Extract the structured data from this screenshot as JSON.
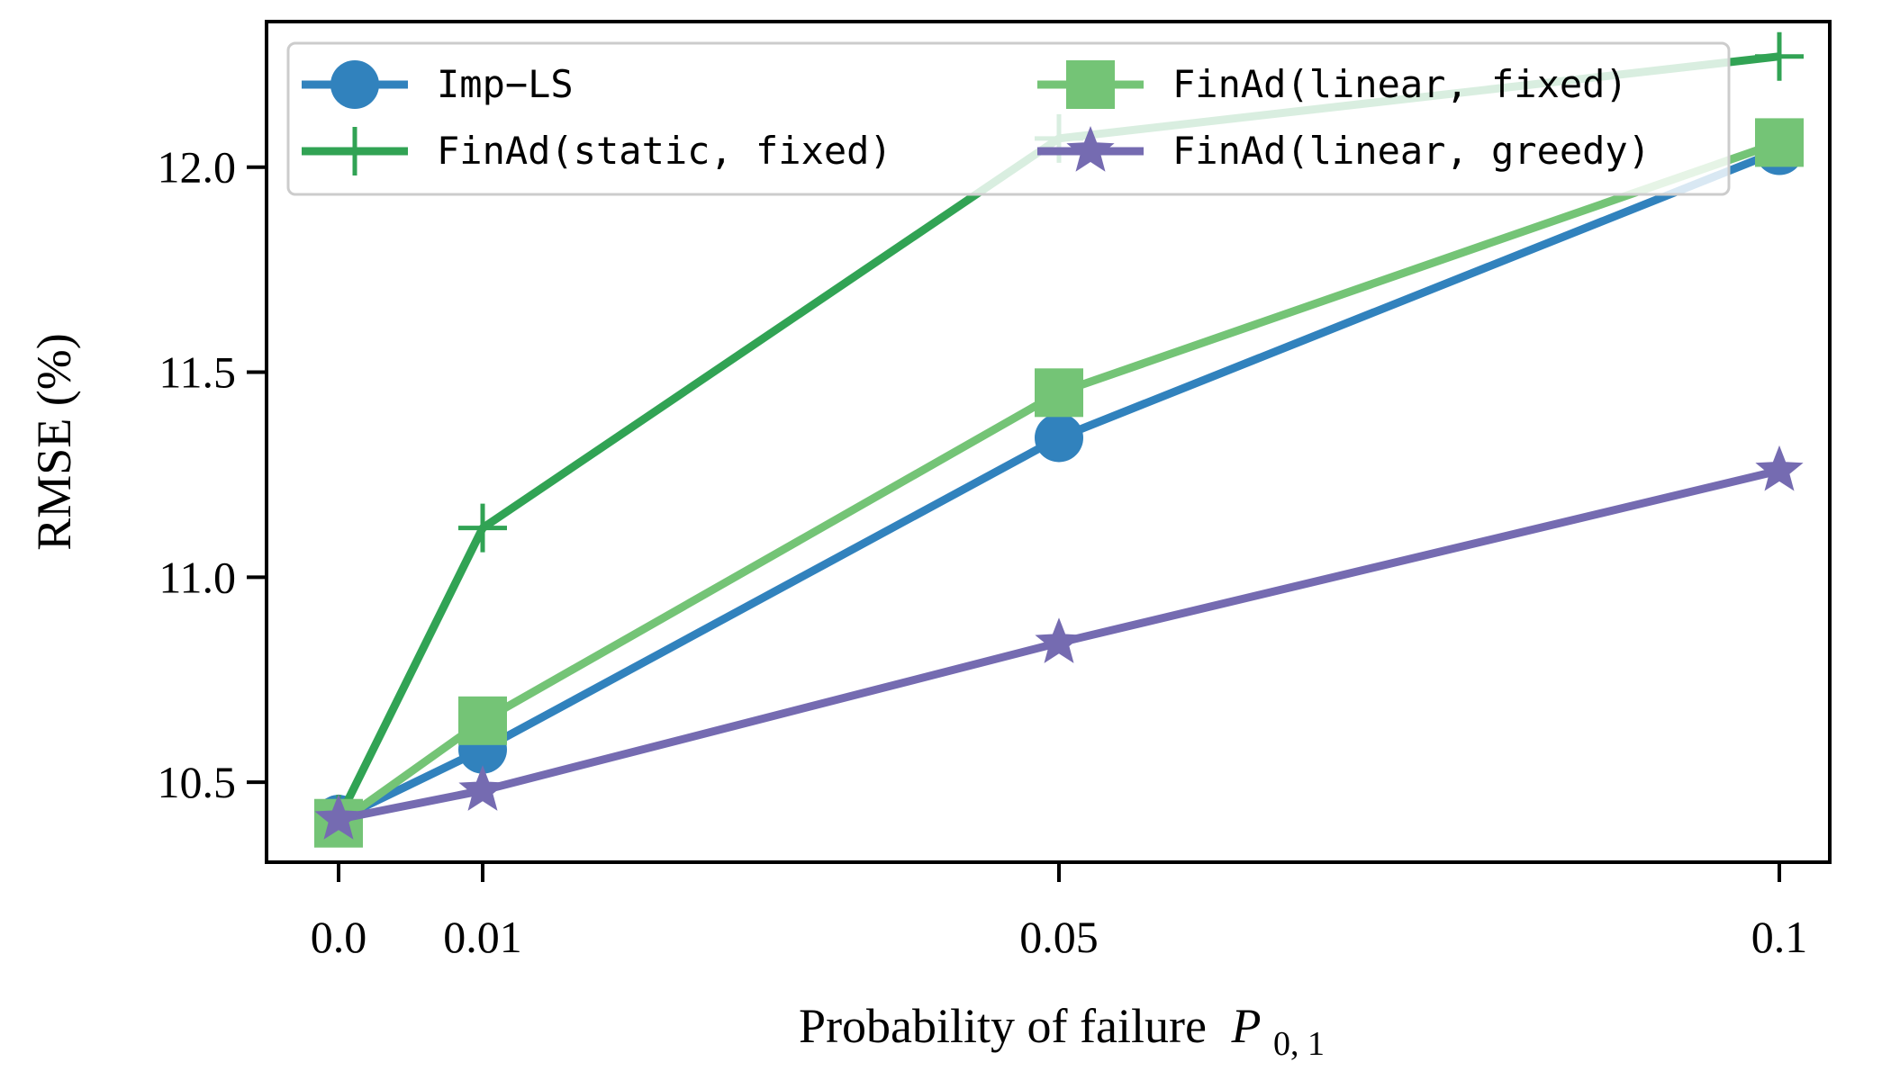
{
  "chart_data": {
    "type": "line",
    "xlabel": "Probability of failure",
    "xlabel_math": {
      "base": "P",
      "sub": "0, 1"
    },
    "ylabel": "RMSE (%)",
    "x": [
      0.0,
      0.01,
      0.05,
      0.1
    ],
    "x_tick_labels": [
      "0.0",
      "0.01",
      "0.05",
      "0.1"
    ],
    "y_ticks": [
      10.5,
      11.0,
      11.5,
      12.0
    ],
    "y_tick_labels": [
      "10.5",
      "11.0",
      "11.5",
      "12.0"
    ],
    "xlim": [
      -0.005,
      0.1035
    ],
    "ylim": [
      10.305,
      12.355
    ],
    "grid": false,
    "legend": {
      "placement": "top-left",
      "columns": 2
    },
    "series": [
      {
        "name": "Imp−LS",
        "color": "#3182bd",
        "marker": "circle",
        "values": [
          10.41,
          10.58,
          11.34,
          12.04
        ]
      },
      {
        "name": "FinAd(static, fixed)",
        "color": "#31a354",
        "marker": "plus",
        "values": [
          10.41,
          11.12,
          12.07,
          12.27
        ]
      },
      {
        "name": "FinAd(linear, fixed)",
        "color": "#74c476",
        "marker": "square",
        "values": [
          10.4,
          10.65,
          11.45,
          12.06
        ]
      },
      {
        "name": "FinAd(linear, greedy)",
        "color": "#756bb1",
        "marker": "star",
        "values": [
          10.41,
          10.48,
          10.84,
          11.26
        ]
      }
    ]
  }
}
